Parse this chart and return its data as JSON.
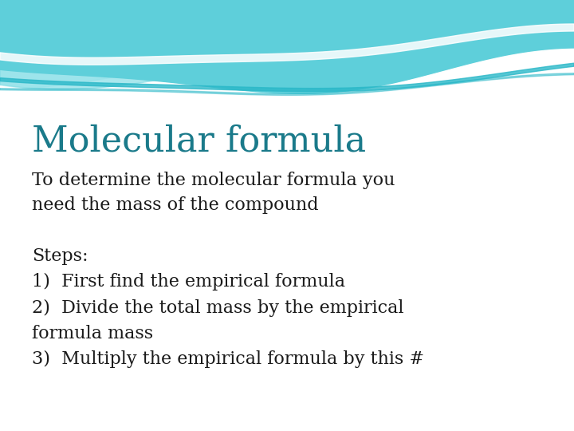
{
  "title": "Molecular formula",
  "title_color": "#1a7a8a",
  "title_fontsize": 32,
  "body_text": "To determine the molecular formula you\nneed the mass of the compound",
  "steps_text": "Steps:\n1)  First find the empirical formula\n2)  Divide the total mass by the empirical\nformula mass\n3)  Multiply the empirical formula by this #",
  "body_fontsize": 16,
  "bg_color": "#ffffff",
  "wave_color_main": "#5ecfda",
  "wave_color_mid": "#85dde6",
  "wave_color_light": "#b0ecf0",
  "wave_highlight": "#ffffff",
  "wave_teal_line": "#2ab8c8",
  "text_color": "#1a1a1a"
}
